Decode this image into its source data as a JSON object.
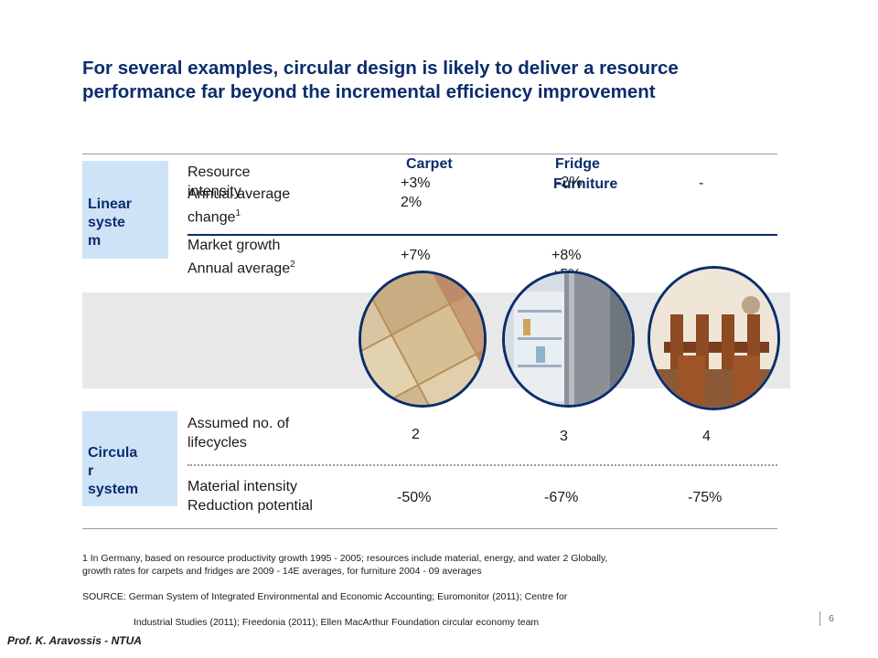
{
  "title": "For several examples, circular design is likely to deliver a resource performance far beyond the incremental efficiency improvement",
  "columns": {
    "carpet": "Carpet",
    "fridge": "Fridge",
    "furniture": "Furniture"
  },
  "linear": {
    "label": "Linear syste m",
    "rows": [
      {
        "label_a": "Resource intensity",
        "label_b": "Annual average change",
        "sup": "1",
        "carpet": "+3% 2%",
        "fridge": "-2%",
        "furniture": "-"
      },
      {
        "label_a": "Market growth Annual average",
        "sup": "2",
        "carpet": "+7%",
        "fridge": "+8%",
        "fridge_cut": "+5%"
      }
    ]
  },
  "circular": {
    "label": "Circula r system",
    "rows": [
      {
        "label": "Assumed no. of lifecycles",
        "carpet": "2",
        "fridge": "3",
        "furniture": "4"
      },
      {
        "label": "Material intensity Reduction potential",
        "carpet": "-50%",
        "fridge": "-67%",
        "furniture": "-75%"
      }
    ]
  },
  "footnotes": {
    "line1": "1 In Germany, based on resource productivity growth 1995 - 2005; resources include material, energy, and water 2 Globally, growth rates for carpets and fridges are 2009 - 14E averages, for furniture 2004 - 09 averages",
    "line2": "SOURCE: German System of Integrated Environmental and Economic Accounting; Euromonitor (2011); Centre for",
    "line3": "Industrial Studies (2011); Freedonia (2011); Ellen MacArthur Foundation circular economy team"
  },
  "page_number": "6",
  "author": "Prof. K. Aravossis - NTUA",
  "colors": {
    "title": "#0b2d6b",
    "label_bg": "#cfe3f7",
    "band_bg": "#e8e8e8",
    "rule": "#0b2d6b"
  },
  "icons": [
    "carpet-samples-image",
    "fridge-image",
    "dining-furniture-image"
  ]
}
